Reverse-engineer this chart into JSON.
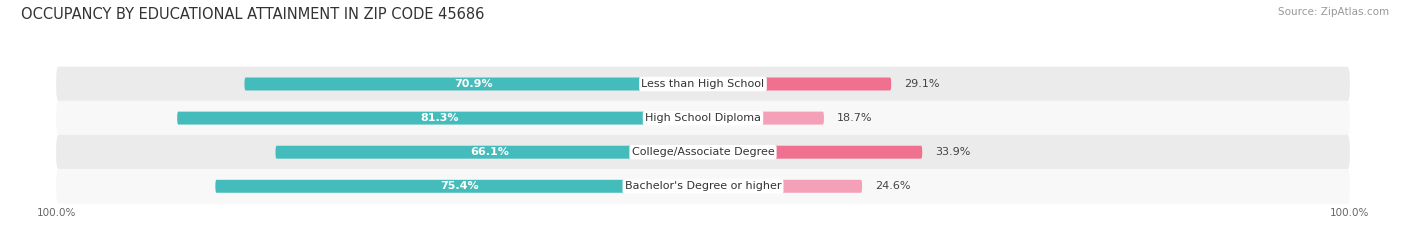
{
  "title": "OCCUPANCY BY EDUCATIONAL ATTAINMENT IN ZIP CODE 45686",
  "source": "Source: ZipAtlas.com",
  "categories": [
    "Less than High School",
    "High School Diploma",
    "College/Associate Degree",
    "Bachelor's Degree or higher"
  ],
  "owner_pct": [
    70.9,
    81.3,
    66.1,
    75.4
  ],
  "renter_pct": [
    29.1,
    18.7,
    33.9,
    24.6
  ],
  "owner_color": "#45BCBC",
  "renter_color_odd": "#F07090",
  "renter_color_even": "#F4A0B8",
  "row_bg_odd": "#EBEBEB",
  "row_bg_even": "#F8F8F8",
  "title_fontsize": 10.5,
  "source_fontsize": 7.5,
  "label_fontsize": 8,
  "pct_fontsize": 8,
  "legend_fontsize": 8,
  "axis_tick_fontsize": 7.5,
  "figsize": [
    14.06,
    2.33
  ],
  "dpi": 100
}
